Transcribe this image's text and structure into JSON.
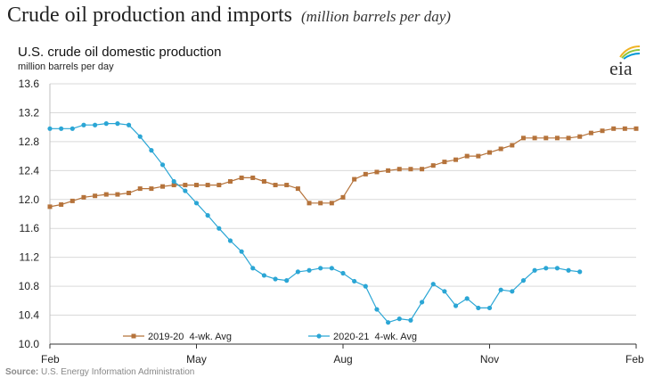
{
  "header": {
    "title": "Crude oil production and imports",
    "unit": "(million barrels per day)"
  },
  "source": {
    "label": "Source:",
    "text": "U.S. Energy Information Administration"
  },
  "logo": {
    "text": "eia",
    "icon": "eia-logo-icon"
  },
  "colors": {
    "series_2019": "#b5733b",
    "series_2020": "#2ba6d5",
    "grid": "#d9d9d9"
  },
  "chart_data": {
    "type": "line",
    "title": "U.S. crude oil domestic production",
    "ylabel": "million barrels per day",
    "xlabel": "",
    "ylim": [
      10.0,
      13.6
    ],
    "yticks": [
      "10.0",
      "10.4",
      "10.8",
      "11.2",
      "11.6",
      "12.0",
      "12.4",
      "12.8",
      "13.2",
      "13.6"
    ],
    "xticks": [
      "Feb",
      "May",
      "Aug",
      "Nov",
      "Feb"
    ],
    "grid": "horizontal",
    "legend": "bottom",
    "series": [
      {
        "name": "2019-20  4-wk. Avg",
        "marker": "square",
        "values": [
          11.9,
          11.93,
          11.98,
          12.03,
          12.05,
          12.07,
          12.07,
          12.09,
          12.15,
          12.15,
          12.18,
          12.2,
          12.2,
          12.2,
          12.2,
          12.2,
          12.25,
          12.3,
          12.3,
          12.25,
          12.2,
          12.2,
          12.15,
          11.95,
          11.95,
          11.95,
          12.03,
          12.28,
          12.35,
          12.38,
          12.4,
          12.42,
          12.42,
          12.42,
          12.47,
          12.52,
          12.55,
          12.6,
          12.6,
          12.65,
          12.7,
          12.75,
          12.85,
          12.85,
          12.85,
          12.85,
          12.85,
          12.87,
          12.92,
          12.95,
          12.98,
          12.98,
          12.98
        ]
      },
      {
        "name": "2020-21  4-wk. Avg",
        "marker": "circle",
        "values": [
          12.98,
          12.98,
          12.98,
          13.03,
          13.03,
          13.05,
          13.05,
          13.03,
          12.87,
          12.68,
          12.48,
          12.25,
          12.12,
          11.95,
          11.78,
          11.6,
          11.43,
          11.28,
          11.05,
          10.95,
          10.9,
          10.88,
          11.0,
          11.02,
          11.05,
          11.05,
          10.98,
          10.87,
          10.8,
          10.48,
          10.3,
          10.35,
          10.33,
          10.58,
          10.83,
          10.73,
          10.53,
          10.63,
          10.5,
          10.5,
          10.75,
          10.73,
          10.88,
          11.02,
          11.05,
          11.05,
          11.02,
          11.0
        ]
      }
    ]
  }
}
